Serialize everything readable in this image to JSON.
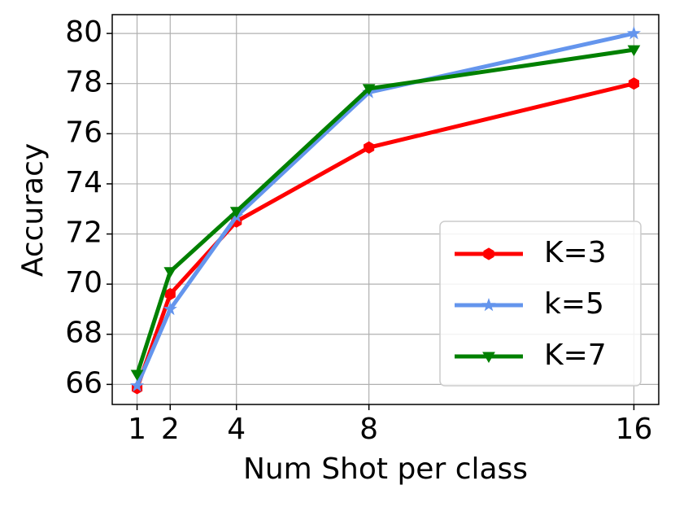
{
  "chart_data": {
    "type": "line",
    "x_label": "Num Shot per class",
    "y_label": "Accuracy",
    "x": [
      1,
      2,
      4,
      8,
      16
    ],
    "series": [
      {
        "name": "K=3",
        "color": "#ff0000",
        "marker": "hexagon",
        "values": [
          65.85,
          69.6,
          72.5,
          75.45,
          78.0
        ]
      },
      {
        "name": "k=5",
        "color": "#6495ed",
        "marker": "star",
        "values": [
          65.95,
          69.0,
          72.7,
          77.65,
          80.0
        ]
      },
      {
        "name": "K=7",
        "color": "#008000",
        "marker": "triangle-down",
        "values": [
          66.4,
          70.5,
          72.9,
          77.8,
          79.35
        ]
      }
    ],
    "xlim": [
      0.25,
      16.75
    ],
    "ylim": [
      65.2,
      80.75
    ],
    "xticks": [
      1,
      2,
      4,
      8,
      16
    ],
    "yticks": [
      66,
      68,
      70,
      72,
      74,
      76,
      78,
      80
    ],
    "grid": true,
    "legend": "lower right"
  }
}
